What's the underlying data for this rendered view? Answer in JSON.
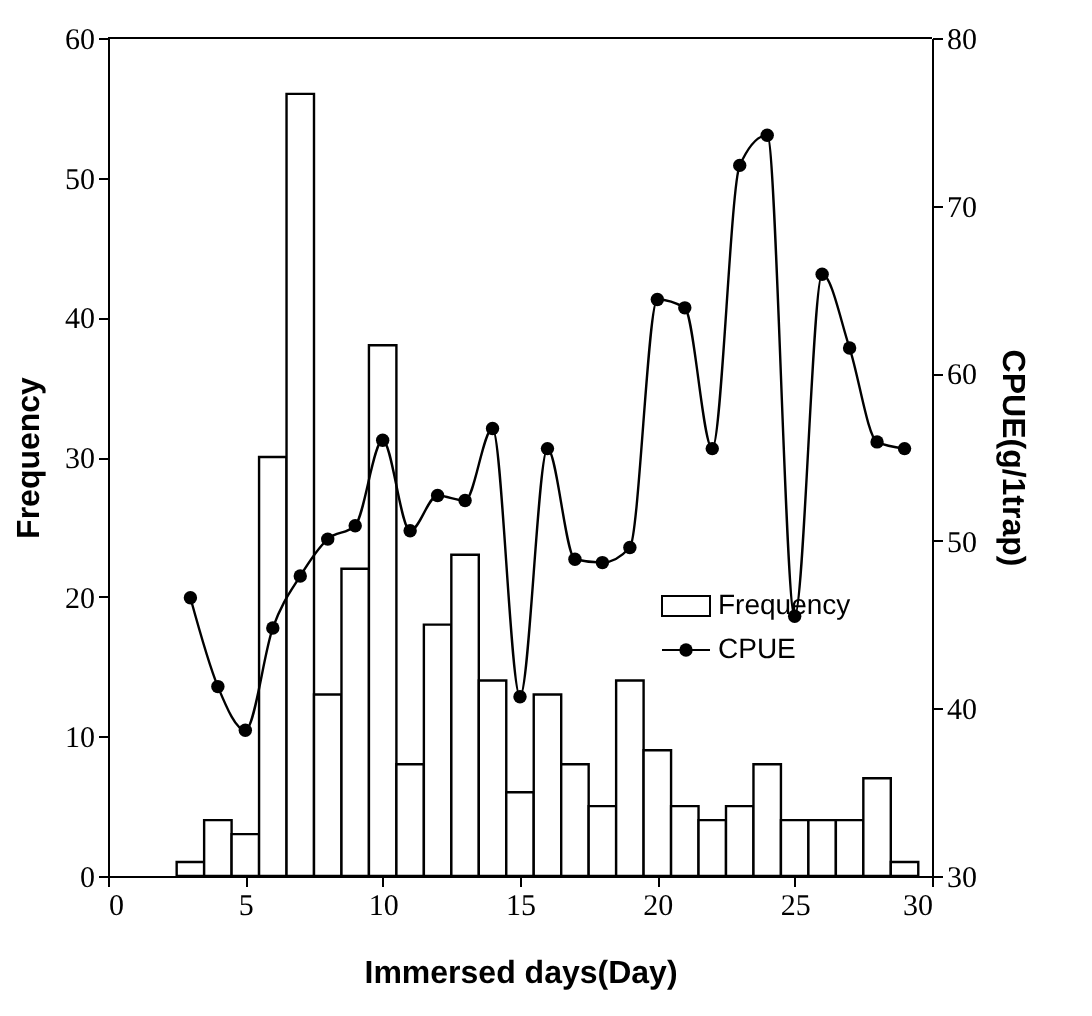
{
  "chart_data": {
    "type": "bar",
    "xlabel": "Immersed days(Day)",
    "ylabel": "Frequency",
    "y2label": "CPUE(g/1trap)",
    "x": [
      3,
      4,
      5,
      6,
      7,
      8,
      9,
      10,
      11,
      12,
      13,
      14,
      15,
      16,
      17,
      18,
      19,
      20,
      21,
      22,
      23,
      24,
      25,
      26,
      27,
      28,
      29
    ],
    "series": [
      {
        "name": "Frequency",
        "color": "#ffffff",
        "values": [
          1,
          4,
          3,
          30,
          56,
          13,
          22,
          38,
          8,
          18,
          23,
          14,
          6,
          13,
          8,
          5,
          14,
          9,
          5,
          4,
          5,
          8,
          4,
          4,
          4,
          7,
          1
        ]
      },
      {
        "name": "CPUE",
        "type": "line",
        "axis": "y2",
        "color": "#000000",
        "marker": "circle",
        "line_style": "solid",
        "values": [
          46.6,
          41.3,
          38.7,
          44.8,
          47.9,
          50.1,
          50.9,
          56.0,
          50.6,
          52.7,
          52.4,
          56.7,
          40.7,
          55.5,
          48.9,
          48.7,
          49.6,
          64.4,
          63.9,
          55.5,
          72.4,
          74.2,
          45.5,
          65.9,
          61.5,
          55.9,
          55.5
        ]
      }
    ],
    "xlim": [
      0,
      30
    ],
    "xticks": [
      0,
      5,
      10,
      15,
      20,
      25,
      30
    ],
    "ylim": [
      0,
      60
    ],
    "yticks": [
      0,
      10,
      20,
      30,
      40,
      50,
      60
    ],
    "y2lim": [
      30,
      80
    ],
    "y2ticks": [
      30,
      40,
      50,
      60,
      70,
      80
    ],
    "grid": false,
    "legend": "bottom right"
  }
}
